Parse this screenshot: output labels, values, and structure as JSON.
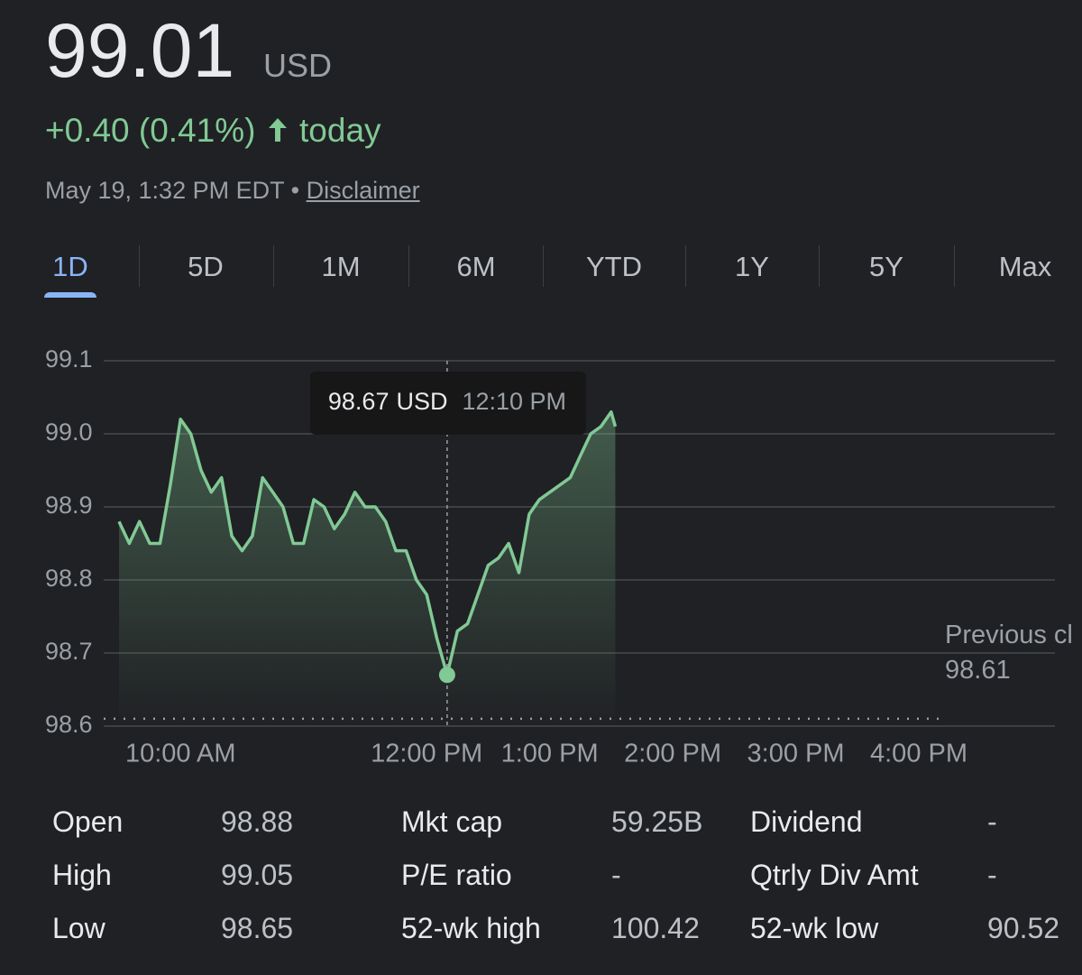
{
  "header": {
    "price": 99.01,
    "currency": "USD",
    "change": "+0.40 (0.41%)",
    "period": "today",
    "timestamp": "May 19, 1:32 PM EDT",
    "separator": "•",
    "disclaimer": "Disclaimer"
  },
  "tabs": {
    "items": [
      "1D",
      "5D",
      "1M",
      "6M",
      "YTD",
      "1Y",
      "5Y",
      "Max"
    ],
    "selected": "1D"
  },
  "chart_data": {
    "type": "line",
    "color": "#81c995",
    "grid": true,
    "x": [
      570,
      575,
      580,
      585,
      590,
      595,
      600,
      605,
      610,
      615,
      620,
      625,
      630,
      635,
      640,
      645,
      650,
      655,
      660,
      665,
      670,
      675,
      680,
      685,
      690,
      695,
      700,
      705,
      710,
      715,
      720,
      725,
      730,
      735,
      740,
      745,
      750,
      755,
      760,
      765,
      770,
      775,
      780,
      785,
      790,
      795,
      800,
      805,
      810,
      812
    ],
    "values": [
      98.88,
      98.85,
      98.88,
      98.85,
      98.85,
      98.93,
      99.02,
      99.0,
      98.95,
      98.92,
      98.94,
      98.86,
      98.84,
      98.86,
      98.94,
      98.92,
      98.9,
      98.85,
      98.85,
      98.91,
      98.9,
      98.87,
      98.89,
      98.92,
      98.9,
      98.9,
      98.88,
      98.84,
      98.84,
      98.8,
      98.78,
      98.72,
      98.67,
      98.73,
      98.74,
      98.78,
      98.82,
      98.83,
      98.85,
      98.81,
      98.89,
      98.91,
      98.92,
      98.93,
      98.94,
      98.97,
      99.0,
      99.01,
      99.03,
      99.01
    ],
    "xlim": [
      570,
      960
    ],
    "xticks": [
      {
        "value": 600,
        "label": "10:00 AM"
      },
      {
        "value": 720,
        "label": "12:00 PM"
      },
      {
        "value": 780,
        "label": "1:00 PM"
      },
      {
        "value": 840,
        "label": "2:00 PM"
      },
      {
        "value": 900,
        "label": "3:00 PM"
      },
      {
        "value": 960,
        "label": "4:00 PM"
      }
    ],
    "ylim": [
      98.6,
      99.1
    ],
    "yticks": [
      98.6,
      98.7,
      98.8,
      98.9,
      {
        "value": 99,
        "label": "99.0"
      },
      99.1
    ],
    "previous_close": {
      "label": "Previous close",
      "value": 98.61
    },
    "tooltip": {
      "price": 98.67,
      "currency": "USD",
      "time": "12:10 PM"
    }
  },
  "stats": {
    "rows": [
      [
        "Open",
        "98.88",
        "Mkt cap",
        "59.25B",
        "Dividend",
        "-"
      ],
      [
        "High",
        "99.05",
        "P/E ratio",
        "-",
        "Qtrly Div Amt",
        "-"
      ],
      [
        "Low",
        "98.65",
        "52-wk high",
        "100.42",
        "52-wk low",
        "90.52"
      ]
    ]
  }
}
